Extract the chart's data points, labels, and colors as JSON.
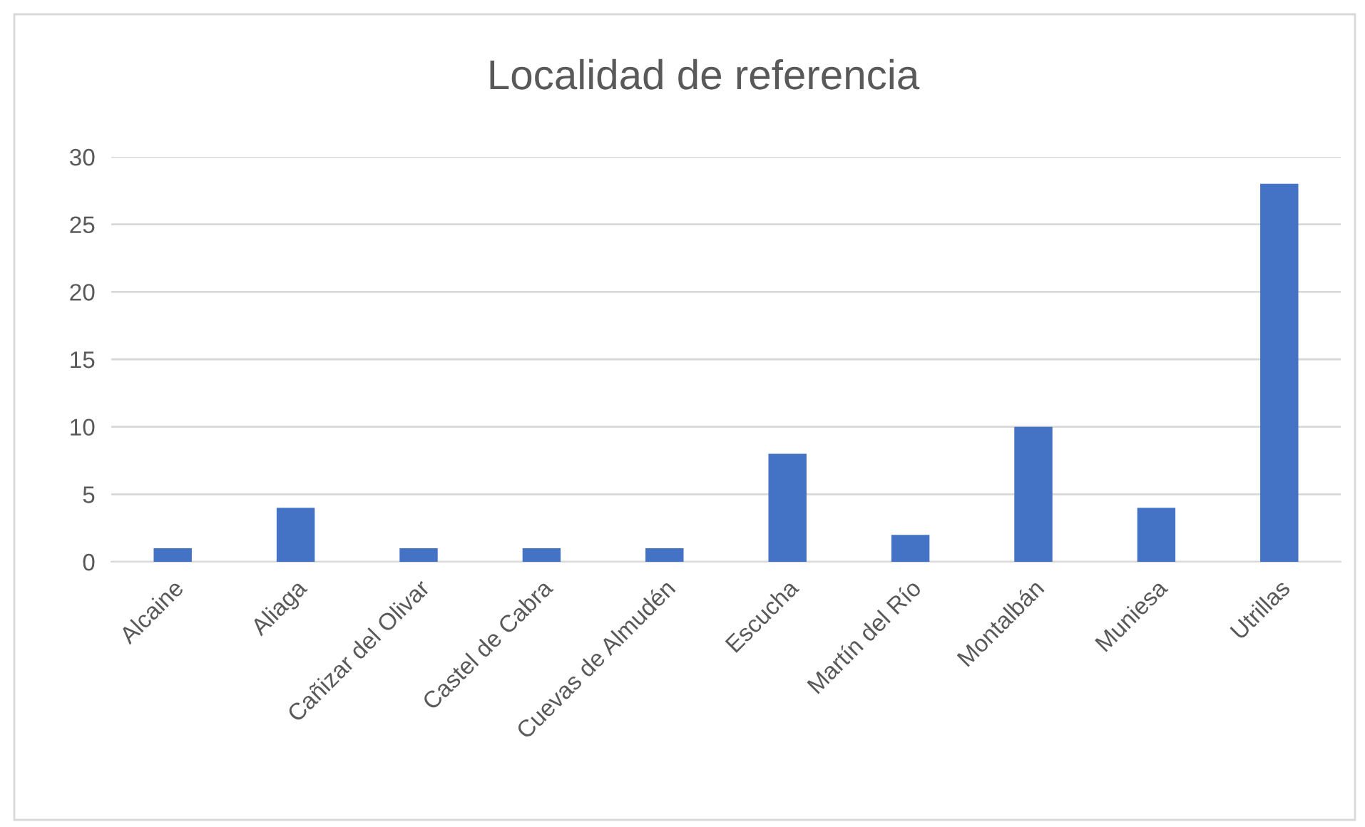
{
  "chart_data": {
    "type": "bar",
    "title": "Localidad de referencia",
    "categories": [
      "Alcaine",
      "Aliaga",
      "Cañizar del Olivar",
      "Castel de Cabra",
      "Cuevas de Almudén",
      "Escucha",
      "Martín del Río",
      "Montalbán",
      "Muniesa",
      "Utrillas"
    ],
    "values": [
      1,
      4,
      1,
      1,
      1,
      8,
      2,
      10,
      4,
      28
    ],
    "color": "#4472c4",
    "ylim": [
      0,
      30
    ],
    "yticks": [
      0,
      5,
      10,
      15,
      20,
      25,
      30
    ],
    "grid": "y",
    "legend": false
  }
}
